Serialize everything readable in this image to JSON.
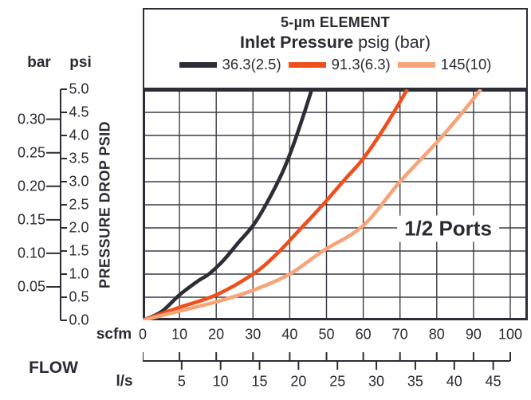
{
  "header": {
    "element_title": "5-µm ELEMENT",
    "inlet_bold": "Inlet Pressure",
    "inlet_rest": " psig (bar)",
    "legend": [
      {
        "label": "36.3(2.5)",
        "color": "#2d2d38"
      },
      {
        "label": "91.3(6.3)",
        "color": "#f04f1c"
      },
      {
        "label": "145(10)",
        "color": "#f7a478"
      }
    ]
  },
  "y_axis": {
    "bar_header": "bar",
    "psi_header": "psi",
    "axis_title": "PRESSURE DROP PSID",
    "psi_tick_labels": [
      "5.0",
      "4.5",
      "4.0",
      "3.5",
      "3.0",
      "2.5",
      "2.0",
      "1.5",
      "1.0",
      "0.5",
      "0.0"
    ],
    "bar_tick_labels": [
      "0.30",
      "0.25",
      "0.20",
      "0.15",
      "0.10",
      "0.05"
    ]
  },
  "x_axis": {
    "flow_label": "FLOW",
    "scfm_label": "scfm",
    "ls_label": "l/s",
    "scfm_tick_labels": [
      "0",
      "10",
      "20",
      "30",
      "40",
      "50",
      "60",
      "70",
      "80",
      "90",
      "100"
    ],
    "ls_tick_labels": [
      "5",
      "10",
      "15",
      "20",
      "25",
      "30",
      "35",
      "40",
      "45"
    ]
  },
  "plot_annotation": "1/2 Ports",
  "chart_data": {
    "type": "line",
    "title": "5-µm ELEMENT",
    "subtitle": "Inlet Pressure psig (bar)",
    "xlabel": "FLOW",
    "x_units": [
      "scfm",
      "l/s"
    ],
    "ylabel": "PRESSURE DROP PSID",
    "y_units": [
      "psi",
      "bar"
    ],
    "xlim_scfm": [
      0,
      100
    ],
    "ylim_psi": [
      0,
      5
    ],
    "x_ticks_scfm": [
      0,
      10,
      20,
      30,
      40,
      50,
      60,
      70,
      80,
      90,
      100
    ],
    "x_ticks_ls": [
      5,
      10,
      15,
      20,
      25,
      30,
      35,
      40,
      45
    ],
    "y_ticks_psi": [
      5.0,
      4.5,
      4.0,
      3.5,
      3.0,
      2.5,
      2.0,
      1.5,
      1.0,
      0.5,
      0.0
    ],
    "y_ticks_bar": [
      0.3,
      0.25,
      0.2,
      0.15,
      0.1,
      0.05
    ],
    "grid": true,
    "legend_position": "top",
    "annotation": "1/2 Ports",
    "series": [
      {
        "name": "36.3(2.5)",
        "inlet_pressure_psig": 36.3,
        "inlet_pressure_bar": 2.5,
        "color": "#2d2d38",
        "points_scfm_psid": [
          [
            0,
            0
          ],
          [
            5,
            0.18
          ],
          [
            10,
            0.55
          ],
          [
            15,
            0.85
          ],
          [
            18,
            1.0
          ],
          [
            22,
            1.3
          ],
          [
            26,
            1.68
          ],
          [
            30,
            2.05
          ],
          [
            33.5,
            2.5
          ],
          [
            38,
            3.2
          ],
          [
            41,
            3.8
          ],
          [
            44,
            4.5
          ],
          [
            46,
            5.0
          ]
        ]
      },
      {
        "name": "91.3(6.3)",
        "inlet_pressure_psig": 91.3,
        "inlet_pressure_bar": 6.3,
        "color": "#f04f1c",
        "points_scfm_psid": [
          [
            0,
            0
          ],
          [
            10,
            0.28
          ],
          [
            20,
            0.55
          ],
          [
            30,
            1.0
          ],
          [
            36,
            1.4
          ],
          [
            42,
            1.9
          ],
          [
            49,
            2.5
          ],
          [
            55,
            3.05
          ],
          [
            60,
            3.5
          ],
          [
            66,
            4.2
          ],
          [
            72,
            5.0
          ]
        ]
      },
      {
        "name": "145(10)",
        "inlet_pressure_psig": 145,
        "inlet_pressure_bar": 10,
        "color": "#f7a478",
        "points_scfm_psid": [
          [
            0,
            0
          ],
          [
            10,
            0.2
          ],
          [
            20,
            0.4
          ],
          [
            30,
            0.65
          ],
          [
            40,
            1.0
          ],
          [
            49,
            1.5
          ],
          [
            60,
            2.05
          ],
          [
            70,
            3.0
          ],
          [
            80,
            3.85
          ],
          [
            87,
            4.5
          ],
          [
            92,
            5.0
          ]
        ]
      }
    ]
  }
}
